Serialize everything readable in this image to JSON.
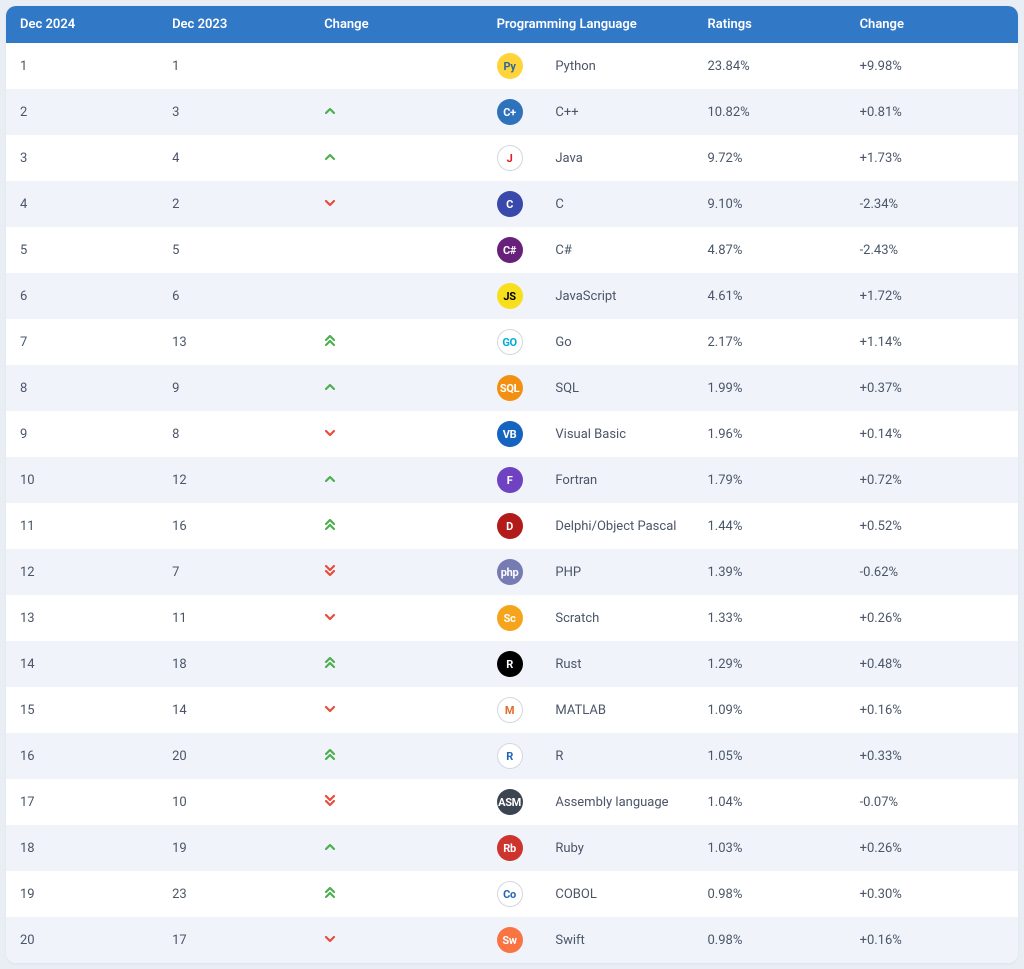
{
  "theme": {
    "header_bg": "#3178c6",
    "header_fg": "#ffffff",
    "row_even_bg": "#f0f4fa",
    "row_odd_bg": "#ffffff",
    "text_color": "#4a5568",
    "page_bg": "#e9eef5",
    "up_color": "#4caf50",
    "down_color": "#e74c3c",
    "font_size_header": 13,
    "font_size_cell": 13,
    "border_radius": 10
  },
  "columns": [
    {
      "key": "rank_now",
      "label": "Dec 2024"
    },
    {
      "key": "rank_prev",
      "label": "Dec 2023"
    },
    {
      "key": "trend",
      "label": "Change"
    },
    {
      "key": "icon",
      "label": "Programming Language"
    },
    {
      "key": "name",
      "label": ""
    },
    {
      "key": "rating",
      "label": "Ratings"
    },
    {
      "key": "delta",
      "label": "Change"
    }
  ],
  "trend_glyphs": {
    "none": "",
    "up": "^",
    "down": "v",
    "up2": "^^",
    "down2": "vv"
  },
  "rows": [
    {
      "rank_now": "1",
      "rank_prev": "1",
      "trend": "none",
      "name": "Python",
      "rating": "23.84%",
      "delta": "+9.98%",
      "icon": {
        "text": "Py",
        "bg": "#ffd43b",
        "fg": "#306998"
      }
    },
    {
      "rank_now": "2",
      "rank_prev": "3",
      "trend": "up",
      "name": "C++",
      "rating": "10.82%",
      "delta": "+0.81%",
      "icon": {
        "text": "C+",
        "bg": "#2f72bc",
        "fg": "#ffffff"
      }
    },
    {
      "rank_now": "3",
      "rank_prev": "4",
      "trend": "up",
      "name": "Java",
      "rating": "9.72%",
      "delta": "+1.73%",
      "icon": {
        "text": "J",
        "bg": "#ffffff",
        "fg": "#e11e22"
      }
    },
    {
      "rank_now": "4",
      "rank_prev": "2",
      "trend": "down",
      "name": "C",
      "rating": "9.10%",
      "delta": "-2.34%",
      "icon": {
        "text": "C",
        "bg": "#3949ab",
        "fg": "#ffffff"
      }
    },
    {
      "rank_now": "5",
      "rank_prev": "5",
      "trend": "none",
      "name": "C#",
      "rating": "4.87%",
      "delta": "-2.43%",
      "icon": {
        "text": "C#",
        "bg": "#68217a",
        "fg": "#ffffff"
      }
    },
    {
      "rank_now": "6",
      "rank_prev": "6",
      "trend": "none",
      "name": "JavaScript",
      "rating": "4.61%",
      "delta": "+1.72%",
      "icon": {
        "text": "JS",
        "bg": "#f7df1e",
        "fg": "#000000"
      }
    },
    {
      "rank_now": "7",
      "rank_prev": "13",
      "trend": "up2",
      "name": "Go",
      "rating": "2.17%",
      "delta": "+1.14%",
      "icon": {
        "text": "GO",
        "bg": "#ffffff",
        "fg": "#00add8"
      }
    },
    {
      "rank_now": "8",
      "rank_prev": "9",
      "trend": "up",
      "name": "SQL",
      "rating": "1.99%",
      "delta": "+0.37%",
      "icon": {
        "text": "SQL",
        "bg": "#f29111",
        "fg": "#ffffff"
      }
    },
    {
      "rank_now": "9",
      "rank_prev": "8",
      "trend": "down",
      "name": "Visual Basic",
      "rating": "1.96%",
      "delta": "+0.14%",
      "icon": {
        "text": "VB",
        "bg": "#1565c0",
        "fg": "#ffffff"
      }
    },
    {
      "rank_now": "10",
      "rank_prev": "12",
      "trend": "up",
      "name": "Fortran",
      "rating": "1.79%",
      "delta": "+0.72%",
      "icon": {
        "text": "F",
        "bg": "#6f42c1",
        "fg": "#ffffff"
      }
    },
    {
      "rank_now": "11",
      "rank_prev": "16",
      "trend": "up2",
      "name": "Delphi/Object Pascal",
      "rating": "1.44%",
      "delta": "+0.52%",
      "icon": {
        "text": "D",
        "bg": "#b31b1b",
        "fg": "#ffffff"
      }
    },
    {
      "rank_now": "12",
      "rank_prev": "7",
      "trend": "down2",
      "name": "PHP",
      "rating": "1.39%",
      "delta": "-0.62%",
      "icon": {
        "text": "php",
        "bg": "#777bb3",
        "fg": "#ffffff"
      }
    },
    {
      "rank_now": "13",
      "rank_prev": "11",
      "trend": "down",
      "name": "Scratch",
      "rating": "1.33%",
      "delta": "+0.26%",
      "icon": {
        "text": "Sc",
        "bg": "#f7a41d",
        "fg": "#ffffff"
      }
    },
    {
      "rank_now": "14",
      "rank_prev": "18",
      "trend": "up2",
      "name": "Rust",
      "rating": "1.29%",
      "delta": "+0.48%",
      "icon": {
        "text": "R",
        "bg": "#000000",
        "fg": "#ffffff"
      }
    },
    {
      "rank_now": "15",
      "rank_prev": "14",
      "trend": "down",
      "name": "MATLAB",
      "rating": "1.09%",
      "delta": "+0.16%",
      "icon": {
        "text": "M",
        "bg": "#ffffff",
        "fg": "#e16b2d"
      }
    },
    {
      "rank_now": "16",
      "rank_prev": "20",
      "trend": "up2",
      "name": "R",
      "rating": "1.05%",
      "delta": "+0.33%",
      "icon": {
        "text": "R",
        "bg": "#ffffff",
        "fg": "#1f65b7"
      }
    },
    {
      "rank_now": "17",
      "rank_prev": "10",
      "trend": "down2",
      "name": "Assembly language",
      "rating": "1.04%",
      "delta": "-0.07%",
      "icon": {
        "text": "ASM",
        "bg": "#3b4450",
        "fg": "#ffffff"
      }
    },
    {
      "rank_now": "18",
      "rank_prev": "19",
      "trend": "up",
      "name": "Ruby",
      "rating": "1.03%",
      "delta": "+0.26%",
      "icon": {
        "text": "Rb",
        "bg": "#cc342d",
        "fg": "#ffffff"
      }
    },
    {
      "rank_now": "19",
      "rank_prev": "23",
      "trend": "up2",
      "name": "COBOL",
      "rating": "0.98%",
      "delta": "+0.30%",
      "icon": {
        "text": "Co",
        "bg": "#ffffff",
        "fg": "#1f65b7"
      }
    },
    {
      "rank_now": "20",
      "rank_prev": "17",
      "trend": "down",
      "name": "Swift",
      "rating": "0.98%",
      "delta": "+0.16%",
      "icon": {
        "text": "Sw",
        "bg": "#fa7343",
        "fg": "#ffffff"
      }
    }
  ]
}
